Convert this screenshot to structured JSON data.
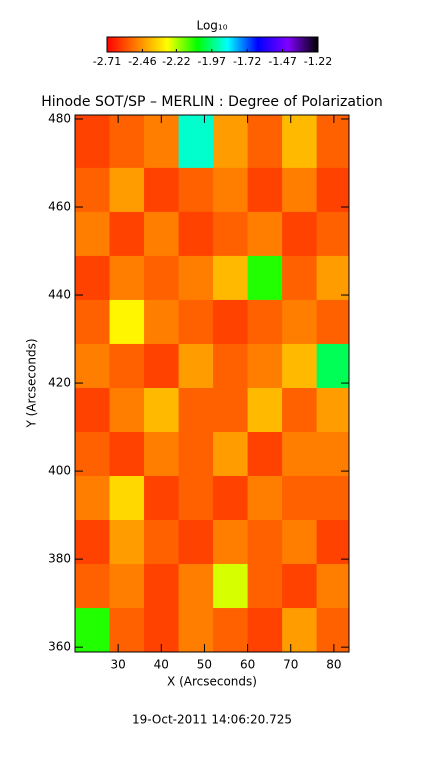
{
  "chart_data": {
    "type": "heatmap",
    "title": "Hinode SOT/SP – MERLIN : Degree of Polarization",
    "x_label": "X (Arcseconds)",
    "y_label": "Y (Arcseconds)",
    "colorbar_label": "Log₁₀",
    "colorbar_ticks": [
      -2.71,
      -2.46,
      -2.22,
      -1.97,
      -1.72,
      -1.47,
      -1.22
    ],
    "clim": [
      -2.71,
      -1.22
    ],
    "colorscale": [
      "#ff0000",
      "#ff8000",
      "#ffff00",
      "#00ff00",
      "#00ffff",
      "#0000ff",
      "#8000ff",
      "#000000"
    ],
    "footer": "19-Oct-2011 14:06:20.725",
    "xlim": [
      20,
      83.5
    ],
    "xticks": [
      30,
      40,
      50,
      60,
      70,
      80
    ],
    "ylim": [
      358.9,
      480.9
    ],
    "yticks": [
      360,
      380,
      400,
      420,
      440,
      460,
      480
    ],
    "xbins": [
      20,
      28,
      36,
      44,
      52,
      60,
      68,
      76,
      83.5
    ],
    "ybins": [
      358.9,
      369,
      379,
      389,
      399,
      409,
      419,
      429,
      439,
      449,
      459,
      469,
      480.9
    ],
    "values": [
      [
        -2.1,
        -2.55,
        -2.6,
        -2.5,
        -2.55,
        -2.6,
        -2.45,
        -2.55
      ],
      [
        -2.55,
        -2.5,
        -2.6,
        -2.5,
        -2.25,
        -2.55,
        -2.6,
        -2.5
      ],
      [
        -2.6,
        -2.45,
        -2.55,
        -2.6,
        -2.5,
        -2.55,
        -2.5,
        -2.6
      ],
      [
        -2.5,
        -2.35,
        -2.6,
        -2.55,
        -2.6,
        -2.5,
        -2.55,
        -2.55
      ],
      [
        -2.55,
        -2.6,
        -2.5,
        -2.55,
        -2.45,
        -2.6,
        -2.5,
        -2.5
      ],
      [
        -2.6,
        -2.5,
        -2.4,
        -2.55,
        -2.55,
        -2.4,
        -2.55,
        -2.45
      ],
      [
        -2.5,
        -2.55,
        -2.6,
        -2.45,
        -2.55,
        -2.5,
        -2.4,
        -2.0
      ],
      [
        -2.55,
        -2.3,
        -2.5,
        -2.55,
        -2.6,
        -2.55,
        -2.5,
        -2.55
      ],
      [
        -2.6,
        -2.5,
        -2.55,
        -2.5,
        -2.4,
        -2.1,
        -2.55,
        -2.45
      ],
      [
        -2.5,
        -2.6,
        -2.5,
        -2.6,
        -2.55,
        -2.5,
        -2.6,
        -2.55
      ],
      [
        -2.55,
        -2.45,
        -2.6,
        -2.55,
        -2.5,
        -2.6,
        -2.5,
        -2.6
      ],
      [
        -2.6,
        -2.55,
        -2.5,
        -1.9,
        -2.45,
        -2.55,
        -2.4,
        -2.55
      ]
    ]
  }
}
